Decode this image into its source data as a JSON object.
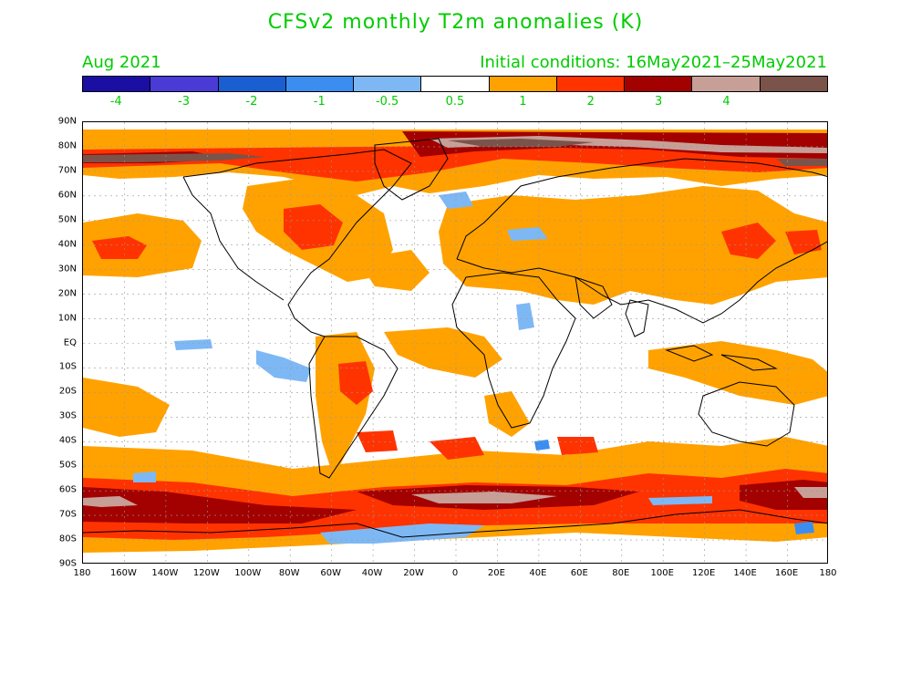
{
  "title": "CFSv2 monthly T2m anomalies (K)",
  "month_label": "Aug 2021",
  "initial_conditions": "Initial conditions: 16May2021–25May2021",
  "colors": {
    "text": "#00cc00",
    "scale": [
      "#1a0ea3",
      "#4a3ad6",
      "#1a5fd1",
      "#3b8ef0",
      "#7db8f5",
      "#ffffff",
      "#ffa200",
      "#ff3300",
      "#a30000",
      "#c79f97",
      "#7a544a"
    ]
  },
  "colorbar_labels": [
    "-4",
    "-3",
    "-2",
    "-1",
    "-0.5",
    "0.5",
    "1",
    "2",
    "3",
    "4"
  ],
  "y_axis": [
    "90N",
    "80N",
    "70N",
    "60N",
    "50N",
    "40N",
    "30N",
    "20N",
    "10N",
    "EQ",
    "10S",
    "20S",
    "30S",
    "40S",
    "50S",
    "60S",
    "70S",
    "80S",
    "90S"
  ],
  "x_axis": [
    "180",
    "160W",
    "140W",
    "120W",
    "100W",
    "80W",
    "60W",
    "40W",
    "20W",
    "0",
    "20E",
    "40E",
    "60E",
    "80E",
    "100E",
    "120E",
    "140E",
    "160E",
    "180"
  ]
}
